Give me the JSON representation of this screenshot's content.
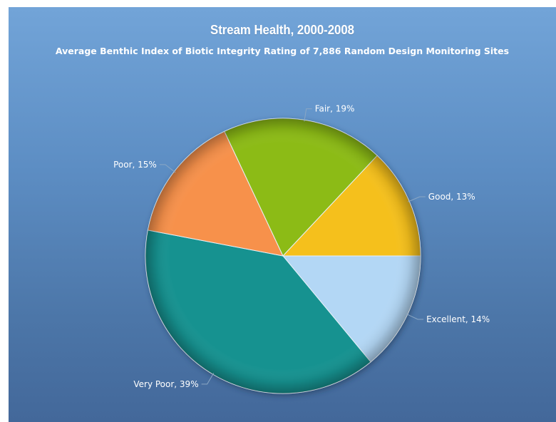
{
  "chart_data": {
    "type": "pie",
    "title": "Stream Health, 2000-2008",
    "subtitle": "Average Benthic Index of Biotic Integrity Rating of 7,886 Random Design Monitoring Sites",
    "slices": [
      {
        "label": "Excellent",
        "value": 14,
        "display": "Excellent, 14%",
        "color": "#b3d7f5"
      },
      {
        "label": "Very Poor",
        "value": 39,
        "display": "Very Poor, 39%",
        "color": "#129290"
      },
      {
        "label": "Poor",
        "value": 15,
        "display": "Poor, 15%",
        "color": "#f7914b"
      },
      {
        "label": "Fair",
        "value": 19,
        "display": "Fair, 19%",
        "color": "#8cbb17"
      },
      {
        "label": "Good",
        "value": 13,
        "display": "Good, 13%",
        "color": "#f5c01c"
      }
    ],
    "unit": "%"
  }
}
